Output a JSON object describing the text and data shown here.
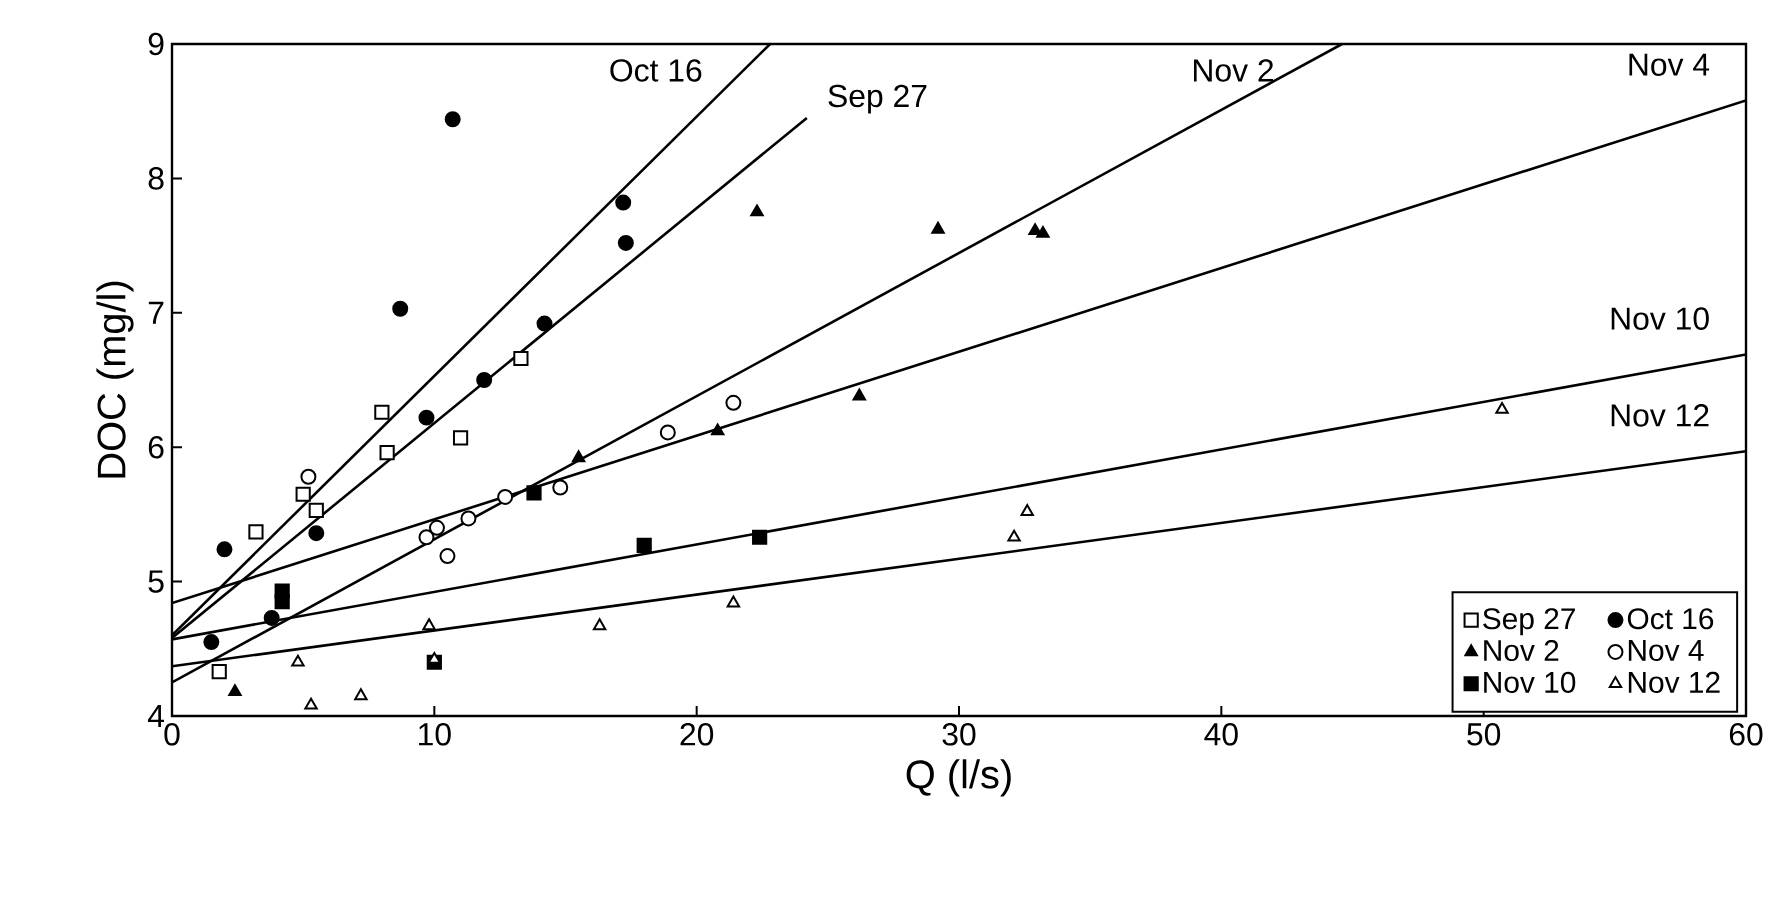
{
  "chart_data": {
    "type": "scatter",
    "xlabel": "Q (l/s)",
    "ylabel": "DOC (mg/l)",
    "xlim": [
      0,
      60
    ],
    "ylim": [
      4,
      9
    ],
    "xticks": [
      0,
      10,
      20,
      30,
      40,
      50,
      60
    ],
    "yticks": [
      4,
      5,
      6,
      7,
      8,
      9
    ],
    "grid": false,
    "legend": "bottom right",
    "series": [
      {
        "name": "Sep 27",
        "marker": "square",
        "color": "#ffffff",
        "x": [
          1.8,
          3.2,
          5.0,
          5.5,
          8.0,
          8.2,
          11.0,
          13.3
        ],
        "values": [
          4.33,
          5.37,
          5.65,
          5.53,
          6.26,
          5.96,
          6.07,
          6.66
        ]
      },
      {
        "name": "Oct 16",
        "marker": "circle",
        "color": "#000000",
        "x": [
          1.5,
          2.0,
          3.8,
          5.5,
          8.7,
          9.7,
          10.7,
          11.9,
          14.2,
          17.2,
          17.3
        ],
        "values": [
          4.55,
          5.24,
          4.73,
          5.36,
          7.03,
          6.22,
          8.44,
          6.5,
          6.92,
          7.82,
          7.52
        ]
      },
      {
        "name": "Nov 2",
        "marker": "triangle",
        "color": "#000000",
        "x": [
          2.4,
          15.5,
          20.8,
          22.3,
          26.2,
          29.2,
          32.9,
          33.2
        ],
        "values": [
          4.18,
          5.92,
          6.12,
          7.75,
          6.38,
          7.62,
          7.61,
          7.59
        ]
      },
      {
        "name": "Nov 4",
        "marker": "circle",
        "color": "#ffffff",
        "x": [
          5.2,
          9.7,
          10.1,
          10.5,
          11.3,
          12.7,
          14.8,
          18.9,
          21.4
        ],
        "values": [
          5.78,
          5.33,
          5.4,
          5.19,
          5.47,
          5.63,
          5.7,
          6.11,
          6.33
        ]
      },
      {
        "name": "Nov 10",
        "marker": "square",
        "color": "#000000",
        "x": [
          4.2,
          4.2,
          10.0,
          13.8,
          18.0,
          22.4
        ],
        "values": [
          4.93,
          4.85,
          4.4,
          5.66,
          5.27,
          5.33
        ]
      },
      {
        "name": "Nov 12",
        "marker": "triangle",
        "color": "#ffffff",
        "x": [
          4.8,
          5.3,
          7.2,
          9.8,
          10.0,
          16.3,
          21.4,
          32.1,
          32.6,
          50.7
        ],
        "values": [
          4.4,
          4.08,
          4.15,
          4.67,
          4.42,
          4.67,
          4.84,
          5.33,
          5.52,
          6.28
        ]
      },
      {
        "name": "Oct 16",
        "type": "line",
        "marker": "none",
        "color": "#000000",
        "x": [
          0,
          22.8
        ],
        "values": [
          4.6,
          9
        ]
      },
      {
        "name": "Sep 27",
        "type": "line",
        "marker": "none",
        "color": "#000000",
        "x": [
          0,
          24.2
        ],
        "values": [
          4.58,
          8.45
        ]
      },
      {
        "name": "Nov 2",
        "type": "line",
        "marker": "none",
        "color": "#000000",
        "x": [
          0,
          44.6
        ],
        "values": [
          4.25,
          9
        ]
      },
      {
        "name": "Nov 4",
        "type": "line",
        "marker": "none",
        "color": "#000000",
        "x": [
          0,
          60
        ],
        "values": [
          4.84,
          8.58
        ]
      },
      {
        "name": "Nov 10",
        "type": "line",
        "marker": "none",
        "color": "#000000",
        "x": [
          0,
          60
        ],
        "values": [
          4.57,
          6.69
        ]
      },
      {
        "name": "Nov 12",
        "type": "line",
        "marker": "none",
        "color": "#000000",
        "x": [
          0,
          60
        ],
        "values": [
          4.37,
          5.97
        ]
      }
    ]
  }
}
